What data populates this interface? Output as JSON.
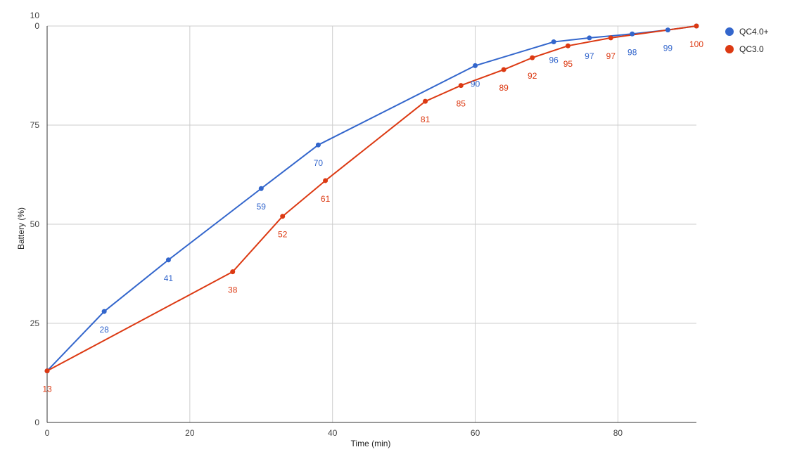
{
  "chart_data": {
    "type": "line",
    "title": "",
    "xlabel": "Time (min)",
    "ylabel": "Battery (%)",
    "xlim": [
      0,
      91
    ],
    "ylim": [
      0,
      100
    ],
    "x_ticks": [
      0,
      20,
      40,
      60,
      80
    ],
    "y_ticks": [
      0,
      25,
      50,
      75,
      100
    ],
    "x_tick_labels": [
      "0",
      "20",
      "40",
      "60",
      "80"
    ],
    "y_tick_labels": [
      "0",
      "25",
      "50",
      "75",
      "10\n0"
    ],
    "grid": true,
    "legend_position": "right",
    "series": [
      {
        "name": "QC4.0+",
        "color": "#3366cc",
        "points": [
          {
            "x": 0,
            "y": 13,
            "label": ""
          },
          {
            "x": 8,
            "y": 28,
            "label": "28"
          },
          {
            "x": 17,
            "y": 41,
            "label": "41"
          },
          {
            "x": 30,
            "y": 59,
            "label": "59"
          },
          {
            "x": 38,
            "y": 70,
            "label": "70"
          },
          {
            "x": 60,
            "y": 90,
            "label": "90"
          },
          {
            "x": 71,
            "y": 96,
            "label": "96"
          },
          {
            "x": 76,
            "y": 97,
            "label": "97"
          },
          {
            "x": 82,
            "y": 98,
            "label": "98"
          },
          {
            "x": 87,
            "y": 99,
            "label": "99"
          },
          {
            "x": 91,
            "y": 100,
            "label": ""
          }
        ]
      },
      {
        "name": "QC3.0",
        "color": "#dc3912",
        "points": [
          {
            "x": 0,
            "y": 13,
            "label": "13"
          },
          {
            "x": 26,
            "y": 38,
            "label": "38"
          },
          {
            "x": 33,
            "y": 52,
            "label": "52"
          },
          {
            "x": 39,
            "y": 61,
            "label": "61"
          },
          {
            "x": 53,
            "y": 81,
            "label": "81"
          },
          {
            "x": 58,
            "y": 85,
            "label": "85"
          },
          {
            "x": 64,
            "y": 89,
            "label": "89"
          },
          {
            "x": 68,
            "y": 92,
            "label": "92"
          },
          {
            "x": 73,
            "y": 95,
            "label": "95"
          },
          {
            "x": 79,
            "y": 97,
            "label": "97"
          },
          {
            "x": 91,
            "y": 100,
            "label": "100"
          }
        ]
      }
    ]
  }
}
